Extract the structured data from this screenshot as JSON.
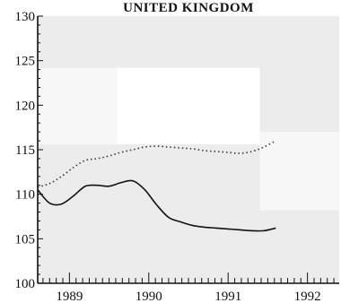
{
  "chart_data": {
    "type": "line",
    "title": "UNITED KINGDOM",
    "xlabel": "",
    "ylabel": "",
    "xlim": [
      1988.6,
      1992.4
    ],
    "ylim": [
      100,
      130
    ],
    "x_ticks": [
      {
        "value": 1989,
        "label": "1989"
      },
      {
        "value": 1990,
        "label": "1990"
      },
      {
        "value": 1991,
        "label": "1991"
      },
      {
        "value": 1992,
        "label": "1992"
      }
    ],
    "y_ticks": [
      {
        "value": 100,
        "label": "100"
      },
      {
        "value": 105,
        "label": "105"
      },
      {
        "value": 110,
        "label": "110"
      },
      {
        "value": 115,
        "label": "115"
      },
      {
        "value": 120,
        "label": "120"
      },
      {
        "value": 125,
        "label": "125"
      },
      {
        "value": 130,
        "label": "130"
      }
    ],
    "grid": false,
    "series": [
      {
        "style": "dotted",
        "color": "#333333",
        "x": [
          1988.6,
          1988.75,
          1988.9,
          1989.05,
          1989.2,
          1989.35,
          1989.5,
          1989.65,
          1989.8,
          1989.95,
          1990.1,
          1990.25,
          1990.4,
          1990.55,
          1990.7,
          1990.85,
          1991.0,
          1991.15,
          1991.3,
          1991.45,
          1991.6
        ],
        "values": [
          110.8,
          111.2,
          112.0,
          113.0,
          113.8,
          114.0,
          114.3,
          114.7,
          115.0,
          115.3,
          115.4,
          115.3,
          115.2,
          115.1,
          114.9,
          114.8,
          114.7,
          114.6,
          114.8,
          115.3,
          116.0
        ]
      },
      {
        "style": "solid",
        "color": "#111111",
        "x": [
          1988.6,
          1988.75,
          1988.9,
          1989.05,
          1989.2,
          1989.35,
          1989.5,
          1989.65,
          1989.8,
          1989.95,
          1990.1,
          1990.25,
          1990.4,
          1990.55,
          1990.7,
          1990.85,
          1991.0,
          1991.15,
          1991.3,
          1991.45,
          1991.6
        ],
        "values": [
          110.5,
          109.0,
          108.9,
          109.8,
          110.9,
          111.0,
          110.9,
          111.3,
          111.5,
          110.5,
          108.8,
          107.4,
          106.9,
          106.5,
          106.3,
          106.2,
          106.1,
          106.0,
          105.9,
          105.9,
          106.2
        ]
      }
    ],
    "background_bands_color": "#ececec"
  }
}
